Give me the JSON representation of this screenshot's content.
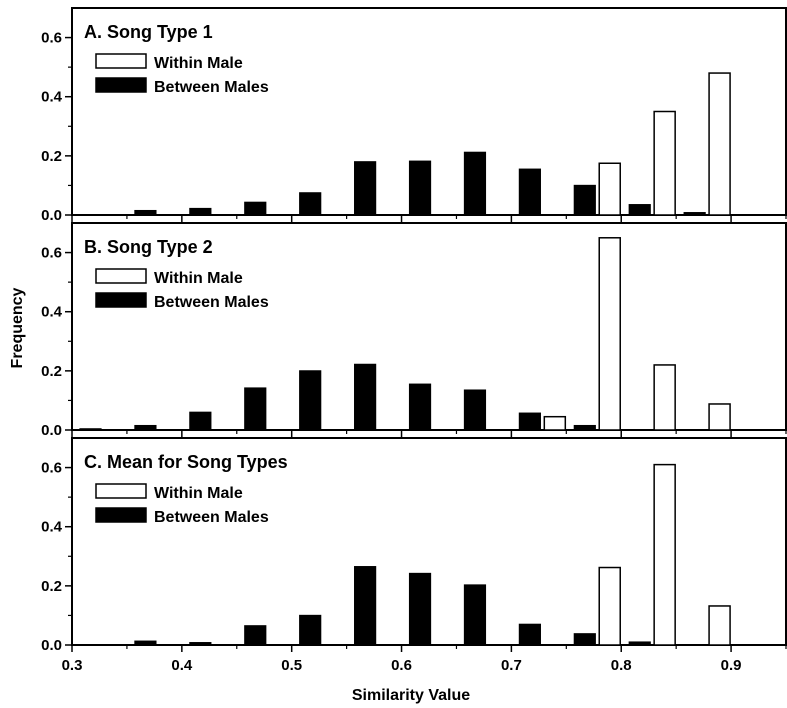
{
  "chart_data": [
    {
      "type": "bar",
      "title": "A. Song Type 1",
      "x": [
        0.3,
        0.35,
        0.4,
        0.45,
        0.5,
        0.55,
        0.6,
        0.65,
        0.7,
        0.75,
        0.8,
        0.85,
        0.9
      ],
      "series": [
        {
          "name": "Within Male",
          "fill": "#ffffff",
          "values": [
            0,
            0,
            0,
            0,
            0,
            0,
            0,
            0,
            0,
            0,
            0.175,
            0.35,
            0.48
          ]
        },
        {
          "name": "Between Males",
          "fill": "#000000",
          "values": [
            0,
            0.015,
            0.022,
            0.043,
            0.075,
            0.18,
            0.182,
            0.212,
            0.155,
            0.1,
            0.035,
            0.008,
            0
          ]
        }
      ],
      "ylim": [
        0,
        0.7
      ],
      "yticks": [
        0.0,
        0.2,
        0.4,
        0.6
      ],
      "ytick_labels": [
        "0.0",
        "0.2",
        "0.4",
        "0.6"
      ],
      "legend_position": "upper-left"
    },
    {
      "type": "bar",
      "title": "B. Song Type 2",
      "x": [
        0.3,
        0.35,
        0.4,
        0.45,
        0.5,
        0.55,
        0.6,
        0.65,
        0.7,
        0.75,
        0.8,
        0.85,
        0.9
      ],
      "series": [
        {
          "name": "Within Male",
          "fill": "#ffffff",
          "values": [
            0,
            0,
            0,
            0,
            0,
            0,
            0,
            0,
            0,
            0.045,
            0.65,
            0.22,
            0.088
          ]
        },
        {
          "name": "Between Males",
          "fill": "#000000",
          "values": [
            0.004,
            0.015,
            0.06,
            0.142,
            0.2,
            0.222,
            0.155,
            0.135,
            0.057,
            0.015,
            0,
            0,
            0
          ]
        }
      ],
      "ylim": [
        0,
        0.7
      ],
      "yticks": [
        0.0,
        0.2,
        0.4,
        0.6
      ],
      "ytick_labels": [
        "0.0",
        "0.2",
        "0.4",
        "0.6"
      ],
      "legend_position": "upper-left"
    },
    {
      "type": "bar",
      "title": "C. Mean for Song Types",
      "x": [
        0.3,
        0.35,
        0.4,
        0.45,
        0.5,
        0.55,
        0.6,
        0.65,
        0.7,
        0.75,
        0.8,
        0.85,
        0.9
      ],
      "series": [
        {
          "name": "Within Male",
          "fill": "#ffffff",
          "values": [
            0,
            0,
            0,
            0,
            0,
            0,
            0,
            0,
            0,
            0,
            0.262,
            0.61,
            0.132
          ]
        },
        {
          "name": "Between Males",
          "fill": "#000000",
          "values": [
            0,
            0.013,
            0.008,
            0.065,
            0.1,
            0.265,
            0.242,
            0.203,
            0.07,
            0.038,
            0.01,
            0,
            0
          ]
        }
      ],
      "ylim": [
        0,
        0.7
      ],
      "yticks": [
        0.0,
        0.2,
        0.4,
        0.6
      ],
      "ytick_labels": [
        "0.0",
        "0.2",
        "0.4",
        "0.6"
      ],
      "legend_position": "upper-left"
    }
  ],
  "shared": {
    "xlim": [
      0.3,
      0.95
    ],
    "xticks": [
      0.3,
      0.4,
      0.5,
      0.6,
      0.7,
      0.8,
      0.9
    ],
    "xtick_labels": [
      "0.3",
      "0.4",
      "0.5",
      "0.6",
      "0.7",
      "0.8",
      "0.9"
    ],
    "xlabel": "Similarity Value",
    "ylabel": "Frequency",
    "grid": false
  }
}
